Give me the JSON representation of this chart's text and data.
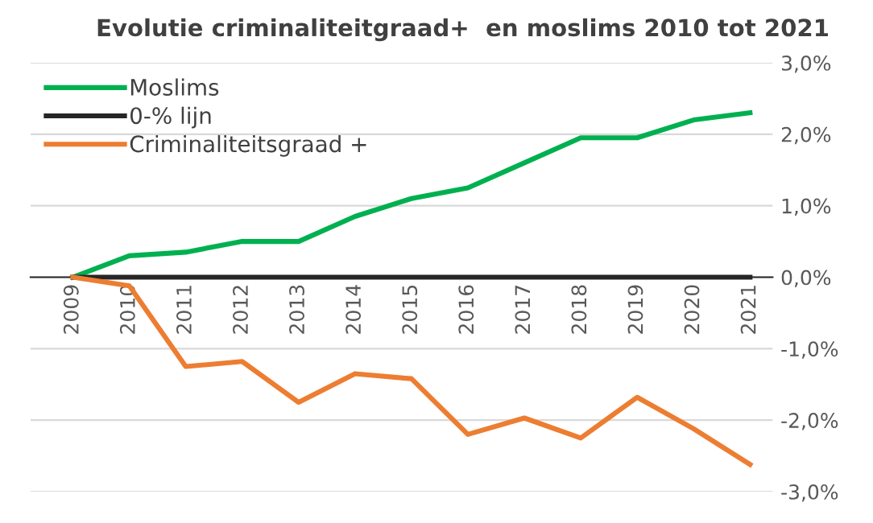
{
  "chart_data": {
    "type": "line",
    "title": "Evolutie criminaliteitgraad+  en moslims 2010 tot 2021",
    "categories": [
      "2009",
      "2010",
      "2011",
      "2012",
      "2013",
      "2014",
      "2015",
      "2016",
      "2017",
      "2018",
      "2019",
      "2020",
      "2021"
    ],
    "series": [
      {
        "name": "Moslims",
        "color": "#00b050",
        "values": [
          0,
          0.3,
          0.35,
          0.5,
          0.5,
          0.85,
          1.1,
          1.25,
          1.6,
          1.95,
          1.95,
          2.2,
          2.3
        ]
      },
      {
        "name": "0-% lijn",
        "color": "#262626",
        "values": [
          0,
          0,
          0,
          0,
          0,
          0,
          0,
          0,
          0,
          0,
          0,
          0,
          0
        ]
      },
      {
        "name": "Criminaliteitsgraad +",
        "color": "#ed7d31",
        "values": [
          0,
          -0.12,
          -1.25,
          -1.18,
          -1.75,
          -1.35,
          -1.42,
          -2.2,
          -1.97,
          -2.25,
          -1.68,
          -2.12,
          -2.62
        ]
      }
    ],
    "ylim": [
      -3,
      3
    ],
    "yticks": [
      {
        "value": 3,
        "label": "3,0%"
      },
      {
        "value": 2,
        "label": "2,0%"
      },
      {
        "value": 1,
        "label": "1,0%"
      },
      {
        "value": 0,
        "label": "0,0%"
      },
      {
        "value": -1,
        "label": "-1,0%"
      },
      {
        "value": -2,
        "label": "-2,0%"
      },
      {
        "value": -3,
        "label": "-3,0%"
      }
    ],
    "grid": "y",
    "legend": "top left",
    "marker": "none",
    "line_style": "solid"
  }
}
